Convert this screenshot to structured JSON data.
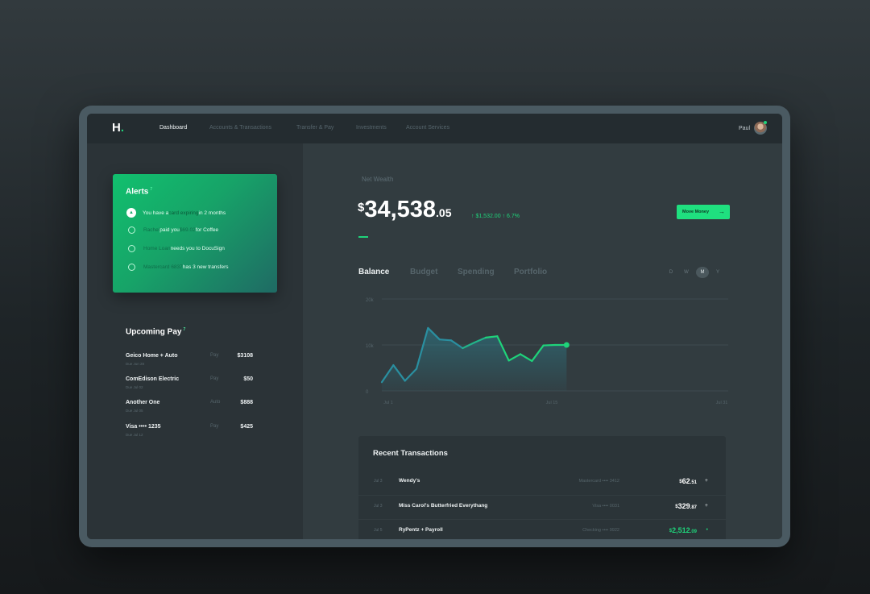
{
  "nav": {
    "logo": "H",
    "logo_dot": ".",
    "items": [
      "Dashboard",
      "Accounts & Transactions",
      "Transfer & Pay",
      "Investments",
      "Account Services"
    ],
    "user": "Paul"
  },
  "alerts": {
    "title": "Alerts",
    "count": "7",
    "rows": [
      {
        "icon": "triangle-icon",
        "a": "You have a ",
        "b": "card expiring",
        "c": " in 2 months",
        "d": ""
      },
      {
        "icon": "heart-icon",
        "a": "Rachel",
        "b": " paid you ",
        "c": "$69.02",
        "d": " for Coffee"
      },
      {
        "icon": "ring-icon",
        "a": "Home Loan",
        "b": " needs you to DocuSign",
        "c": "",
        "d": ""
      },
      {
        "icon": "ring-icon",
        "a": "Mastercard 6837",
        "b": " has 3 new transfers",
        "c": "",
        "d": ""
      }
    ]
  },
  "upcoming": {
    "title": "Upcoming Pay",
    "count": "7",
    "items": [
      {
        "name": "Geico Home + Auto",
        "due": "Due Jun 28",
        "type": "Pay",
        "amount": "$3108"
      },
      {
        "name": "ComEdison Electric",
        "due": "Due Jul 02",
        "type": "Pay",
        "amount": "$50"
      },
      {
        "name": "Another One",
        "due": "Due Jul 05",
        "type": "Auto",
        "amount": "$888"
      },
      {
        "name": "Visa •••• 1235",
        "due": "Due Jul 12",
        "type": "Pay",
        "amount": "$425"
      }
    ]
  },
  "wealth": {
    "label": "Net Wealth",
    "currency": "$",
    "whole": "34,538",
    "cents": ".05",
    "change": "↑ $1,532.00  ↑ 6.7%",
    "move_button": "Move Money"
  },
  "tabs": [
    "Balance",
    "Budget",
    "Spending",
    "Portfolio"
  ],
  "ranges": [
    "D",
    "W",
    "M",
    "Y"
  ],
  "active_range": "M",
  "chart_data": {
    "type": "line",
    "x": [
      "Jul 1",
      "Jul 2",
      "Jul 3",
      "Jul 4",
      "Jul 5",
      "Jul 6",
      "Jul 7",
      "Jul 8",
      "Jul 9",
      "Jul 10",
      "Jul 11",
      "Jul 12",
      "Jul 13",
      "Jul 14",
      "Jul 15",
      "Jul 16",
      "Jul 17"
    ],
    "x_ticks": [
      "Jul 1",
      "Jul 15",
      "Jul 31"
    ],
    "y_ticks": [
      "20k",
      "10k",
      "0"
    ],
    "ylim": [
      0,
      20000
    ],
    "series": [
      {
        "values": [
          1900,
          5600,
          2200,
          4800,
          13700,
          11200,
          11000,
          9300,
          10500,
          11600,
          11900,
          6600,
          8000,
          6500,
          9900,
          10000,
          10000
        ]
      }
    ],
    "colors": {
      "past": "#2a8fa0",
      "recent": "#1fd37a"
    },
    "grid": true
  },
  "transactions": {
    "title": "Recent Transactions",
    "rows": [
      {
        "date": "Jul 3",
        "name": "Wendy's",
        "account": "Mastercard •••• 3412",
        "cur": "$",
        "whole": "62",
        "cents": ".51",
        "icon": "+",
        "credit": false
      },
      {
        "date": "Jul 3",
        "name": "Miss Carol's Butterfried Everythang",
        "account": "Visa •••• 0031",
        "cur": "$",
        "whole": "329",
        "cents": ".87",
        "icon": "+",
        "credit": false
      },
      {
        "date": "Jul 5",
        "name": "RyPentz + Payroll",
        "account": "Checking •••• 9922",
        "cur": "$",
        "whole": "2,512",
        "cents": ".09",
        "icon": "•",
        "credit": true
      }
    ]
  }
}
